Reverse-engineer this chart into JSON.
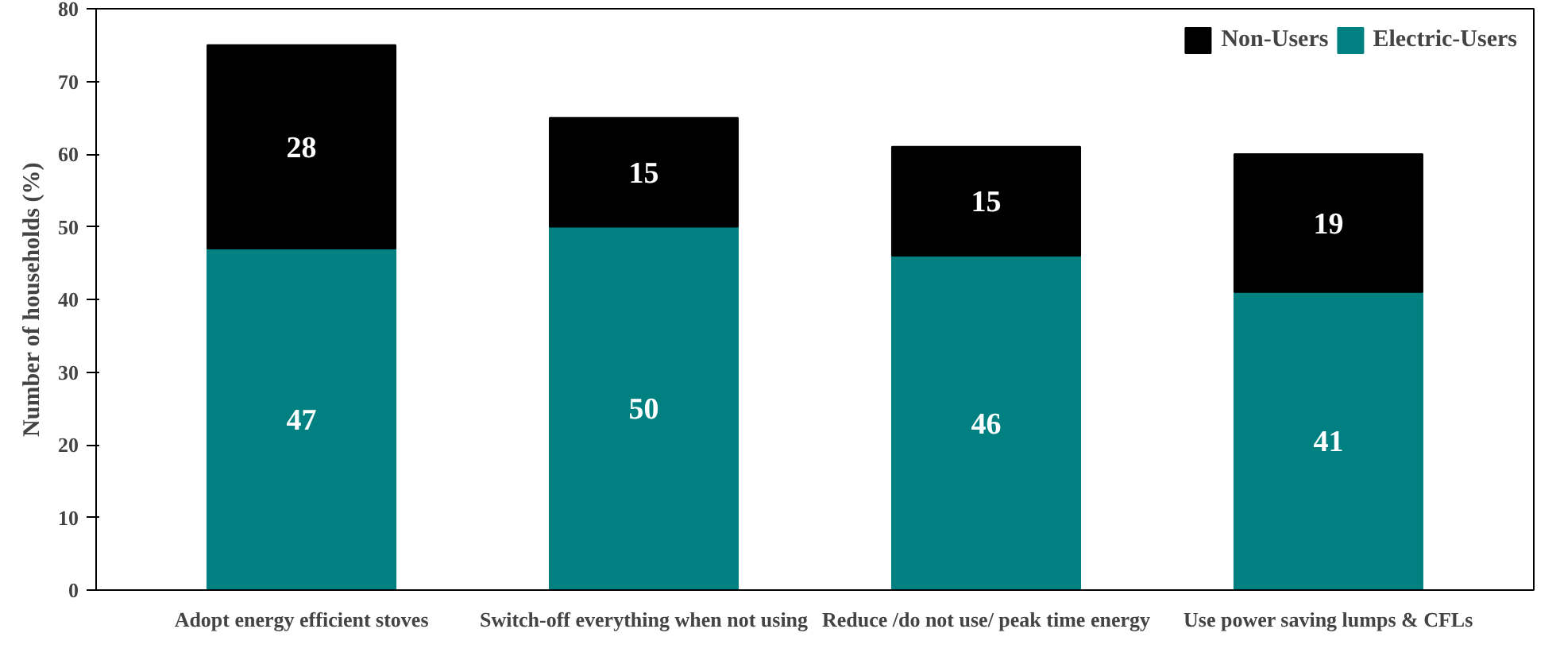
{
  "chart_data": {
    "type": "bar",
    "stacked": true,
    "ylabel": "Number of households (%)",
    "categories": [
      "Adopt energy efficient stoves",
      "Switch-off everything when not using",
      "Reduce /do not use/ peak time energy",
      "Use power saving lumps & CFLs"
    ],
    "series": [
      {
        "name": "Electric-Users",
        "color": "#008080",
        "values": [
          47,
          50,
          46,
          41
        ]
      },
      {
        "name": "Non-Users",
        "color": "#000000",
        "values": [
          28,
          15,
          15,
          19
        ]
      }
    ],
    "ylim": [
      0,
      80
    ],
    "yticks": [
      0,
      10,
      20,
      30,
      40,
      50,
      60,
      70,
      80
    ],
    "grid": false,
    "legend": "top right",
    "data_labels": true
  }
}
